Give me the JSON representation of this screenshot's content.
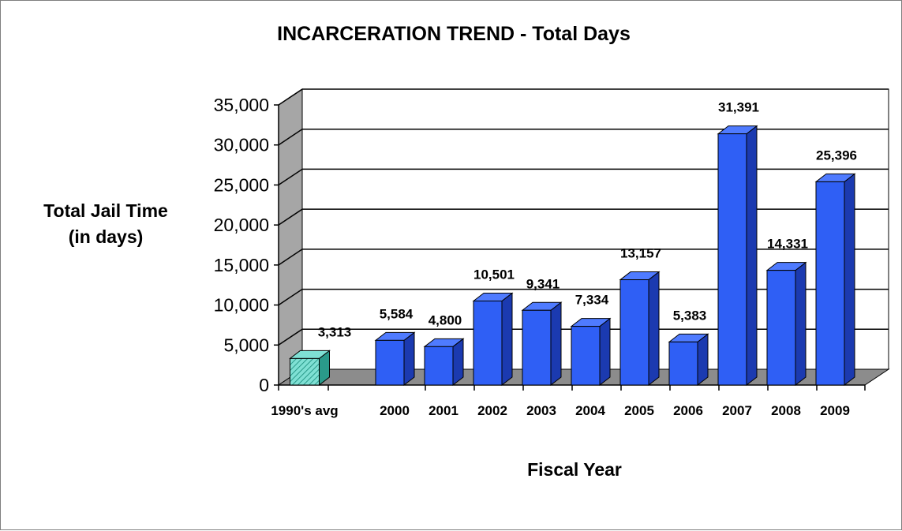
{
  "chart_data": {
    "type": "bar",
    "title": "INCARCERATION TREND - Total Days",
    "ylabel_line1": "Total Jail Time",
    "ylabel_line2": "(in days)",
    "xlabel": "Fiscal Year",
    "ylim": [
      0,
      35000
    ],
    "yticks": [
      0,
      5000,
      10000,
      15000,
      20000,
      25000,
      30000,
      35000
    ],
    "ytick_labels": [
      "0",
      "5,000",
      "10,000",
      "15,000",
      "20,000",
      "25,000",
      "30,000",
      "35,000"
    ],
    "grid": true,
    "three_d": true,
    "categories": [
      "1990's avg",
      "2000",
      "2001",
      "2002",
      "2003",
      "2004",
      "2005",
      "2006",
      "2007",
      "2008",
      "2009"
    ],
    "values": [
      3313,
      5584,
      4800,
      10501,
      9341,
      7334,
      13157,
      5383,
      31391,
      14331,
      25396
    ],
    "value_labels": [
      "3,313",
      "5,584",
      "4,800",
      "10,501",
      "9,341",
      "7,334",
      "13,157",
      "5,383",
      "31,391",
      "14,331",
      "25,396"
    ],
    "colors": {
      "avg_bar": "#7fe0d4",
      "avg_pattern": "#2a9a8a",
      "bar_front": "#2f5ff5",
      "bar_top": "#4f7bff",
      "bar_side": "#1b3ab0",
      "wall": "#a6a6a6",
      "floor": "#8c8c8c",
      "grid": "#000000"
    }
  }
}
